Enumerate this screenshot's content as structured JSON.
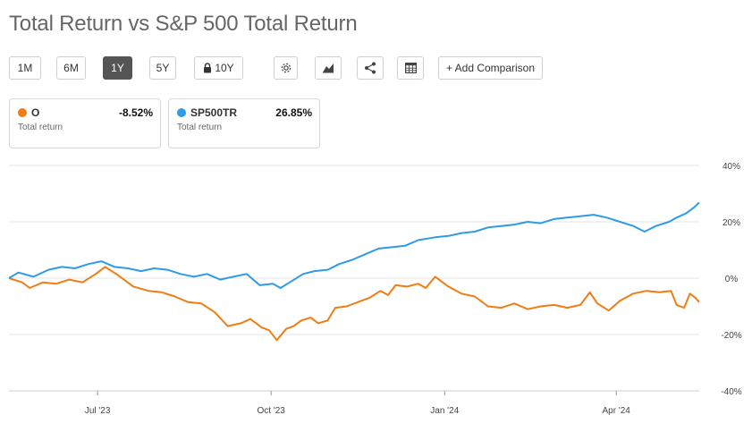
{
  "title": "Total Return vs S&P 500 Total Return",
  "toolbar": {
    "ranges": [
      {
        "label": "1M",
        "active": false
      },
      {
        "label": "6M",
        "active": false
      },
      {
        "label": "1Y",
        "active": true
      },
      {
        "label": "5Y",
        "active": false
      },
      {
        "label": "10Y",
        "active": false,
        "locked": true
      }
    ],
    "icons": [
      "gear-icon",
      "area-chart-icon",
      "share-icon",
      "table-icon"
    ],
    "add_comparison_label": "+ Add Comparison"
  },
  "legend": [
    {
      "name": "O",
      "value": "-8.52%",
      "sub": "Total return",
      "color": "#f07d14"
    },
    {
      "name": "SP500TR",
      "value": "26.85%",
      "sub": "Total return",
      "color": "#2e9be8"
    }
  ],
  "chart_data": {
    "type": "line",
    "x_start": "2023-05-15",
    "x_end": "2024-05-15",
    "x_ticks": [
      {
        "date": "2023-07-01",
        "label": "Jul '23"
      },
      {
        "date": "2023-10-01",
        "label": "Oct '23"
      },
      {
        "date": "2024-01-01",
        "label": "Jan '24"
      },
      {
        "date": "2024-04-01",
        "label": "Apr '24"
      }
    ],
    "y_ticks": [
      {
        "value": 40,
        "label": "40%"
      },
      {
        "value": 20,
        "label": "20%"
      },
      {
        "value": 0,
        "label": "0%"
      },
      {
        "value": -20,
        "label": "-20%"
      },
      {
        "value": -40,
        "label": "-40%"
      }
    ],
    "ylim": [
      -40,
      40
    ],
    "y_axis_position": "right",
    "grid": true,
    "series": [
      {
        "name": "O",
        "color": "#f07d14",
        "points": [
          [
            "2023-05-15",
            0
          ],
          [
            "2023-05-22",
            -1.5
          ],
          [
            "2023-05-26",
            -3.5
          ],
          [
            "2023-06-02",
            -1.5
          ],
          [
            "2023-06-09",
            -2.0
          ],
          [
            "2023-06-16",
            -0.5
          ],
          [
            "2023-06-23",
            -1.5
          ],
          [
            "2023-06-30",
            1.5
          ],
          [
            "2023-07-05",
            4.0
          ],
          [
            "2023-07-12",
            1.0
          ],
          [
            "2023-07-20",
            -3.0
          ],
          [
            "2023-07-28",
            -4.5
          ],
          [
            "2023-08-04",
            -5.0
          ],
          [
            "2023-08-11",
            -6.5
          ],
          [
            "2023-08-18",
            -8.5
          ],
          [
            "2023-08-25",
            -9.0
          ],
          [
            "2023-09-01",
            -12.0
          ],
          [
            "2023-09-08",
            -17.0
          ],
          [
            "2023-09-15",
            -16.0
          ],
          [
            "2023-09-20",
            -14.5
          ],
          [
            "2023-09-26",
            -17.5
          ],
          [
            "2023-09-30",
            -18.5
          ],
          [
            "2023-10-04",
            -22.0
          ],
          [
            "2023-10-09",
            -18.0
          ],
          [
            "2023-10-13",
            -17.0
          ],
          [
            "2023-10-17",
            -15.0
          ],
          [
            "2023-10-22",
            -14.0
          ],
          [
            "2023-10-26",
            -16.0
          ],
          [
            "2023-10-31",
            -15.0
          ],
          [
            "2023-11-04",
            -10.5
          ],
          [
            "2023-11-10",
            -10.0
          ],
          [
            "2023-11-16",
            -8.5
          ],
          [
            "2023-11-22",
            -7.0
          ],
          [
            "2023-11-28",
            -4.5
          ],
          [
            "2023-12-02",
            -6.0
          ],
          [
            "2023-12-06",
            -2.5
          ],
          [
            "2023-12-12",
            -3.0
          ],
          [
            "2023-12-18",
            -2.0
          ],
          [
            "2023-12-22",
            -3.5
          ],
          [
            "2023-12-27",
            0.5
          ],
          [
            "2024-01-03",
            -3.0
          ],
          [
            "2024-01-10",
            -5.5
          ],
          [
            "2024-01-17",
            -6.5
          ],
          [
            "2024-01-24",
            -10.0
          ],
          [
            "2024-01-31",
            -10.5
          ],
          [
            "2024-02-07",
            -9.0
          ],
          [
            "2024-02-14",
            -11.0
          ],
          [
            "2024-02-21",
            -10.0
          ],
          [
            "2024-02-28",
            -9.5
          ],
          [
            "2024-03-06",
            -10.5
          ],
          [
            "2024-03-13",
            -9.5
          ],
          [
            "2024-03-18",
            -5.0
          ],
          [
            "2024-03-22",
            -9.0
          ],
          [
            "2024-03-28",
            -11.5
          ],
          [
            "2024-04-03",
            -8.0
          ],
          [
            "2024-04-10",
            -5.5
          ],
          [
            "2024-04-17",
            -4.5
          ],
          [
            "2024-04-24",
            -5.0
          ],
          [
            "2024-04-30",
            -4.5
          ],
          [
            "2024-05-03",
            -9.5
          ],
          [
            "2024-05-07",
            -10.5
          ],
          [
            "2024-05-10",
            -5.5
          ],
          [
            "2024-05-13",
            -7.0
          ],
          [
            "2024-05-15",
            -8.52
          ]
        ]
      },
      {
        "name": "SP500TR",
        "color": "#2e9be8",
        "points": [
          [
            "2023-05-15",
            0
          ],
          [
            "2023-05-20",
            2.0
          ],
          [
            "2023-05-28",
            0.5
          ],
          [
            "2023-06-05",
            3.0
          ],
          [
            "2023-06-12",
            4.0
          ],
          [
            "2023-06-19",
            3.5
          ],
          [
            "2023-06-26",
            5.0
          ],
          [
            "2023-07-03",
            6.0
          ],
          [
            "2023-07-10",
            4.0
          ],
          [
            "2023-07-17",
            3.5
          ],
          [
            "2023-07-24",
            2.5
          ],
          [
            "2023-07-31",
            3.5
          ],
          [
            "2023-08-07",
            3.0
          ],
          [
            "2023-08-14",
            1.5
          ],
          [
            "2023-08-21",
            0.5
          ],
          [
            "2023-08-28",
            1.5
          ],
          [
            "2023-09-04",
            -0.5
          ],
          [
            "2023-09-11",
            0.5
          ],
          [
            "2023-09-18",
            1.5
          ],
          [
            "2023-09-25",
            -2.5
          ],
          [
            "2023-10-02",
            -2.0
          ],
          [
            "2023-10-06",
            -3.5
          ],
          [
            "2023-10-12",
            -1.0
          ],
          [
            "2023-10-18",
            1.5
          ],
          [
            "2023-10-24",
            2.5
          ],
          [
            "2023-10-31",
            3.0
          ],
          [
            "2023-11-06",
            5.0
          ],
          [
            "2023-11-13",
            6.5
          ],
          [
            "2023-11-20",
            8.5
          ],
          [
            "2023-11-27",
            10.5
          ],
          [
            "2023-12-04",
            11.0
          ],
          [
            "2023-12-11",
            11.5
          ],
          [
            "2023-12-18",
            13.5
          ],
          [
            "2023-12-27",
            14.5
          ],
          [
            "2024-01-03",
            15.0
          ],
          [
            "2024-01-10",
            16.0
          ],
          [
            "2024-01-17",
            16.5
          ],
          [
            "2024-01-24",
            18.0
          ],
          [
            "2024-01-31",
            18.5
          ],
          [
            "2024-02-07",
            19.0
          ],
          [
            "2024-02-14",
            20.0
          ],
          [
            "2024-02-21",
            19.5
          ],
          [
            "2024-02-28",
            21.0
          ],
          [
            "2024-03-06",
            21.5
          ],
          [
            "2024-03-13",
            22.0
          ],
          [
            "2024-03-20",
            22.5
          ],
          [
            "2024-03-27",
            21.5
          ],
          [
            "2024-04-03",
            20.0
          ],
          [
            "2024-04-10",
            18.5
          ],
          [
            "2024-04-16",
            16.5
          ],
          [
            "2024-04-22",
            18.5
          ],
          [
            "2024-04-29",
            20.0
          ],
          [
            "2024-05-03",
            21.5
          ],
          [
            "2024-05-08",
            23.0
          ],
          [
            "2024-05-12",
            25.0
          ],
          [
            "2024-05-15",
            26.85
          ]
        ]
      }
    ]
  }
}
